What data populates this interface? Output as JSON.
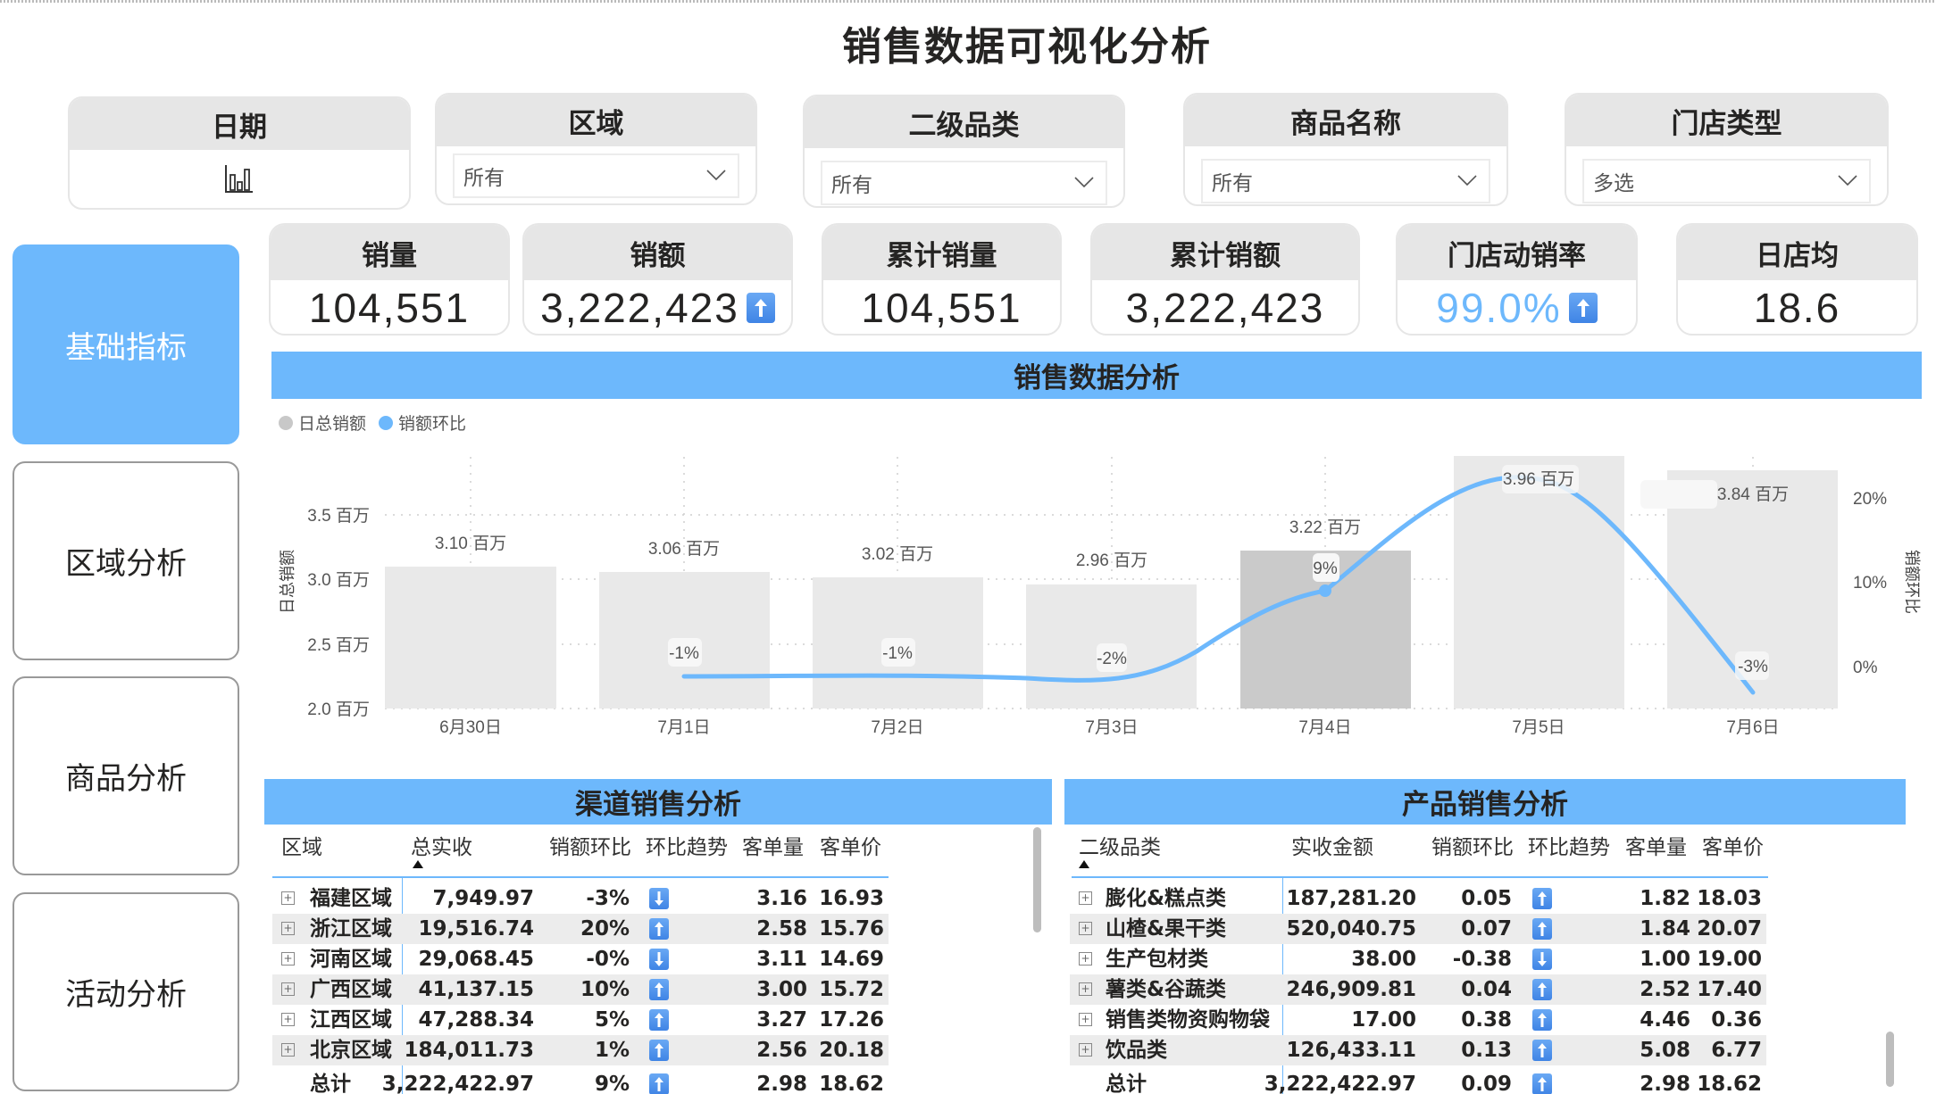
{
  "title": "销售数据可视化分析",
  "slicers": [
    {
      "label": "日期",
      "type": "date",
      "icon": "bar-chart-icon"
    },
    {
      "label": "区域",
      "value": "所有"
    },
    {
      "label": "二级品类",
      "value": "所有"
    },
    {
      "label": "商品名称",
      "value": "所有"
    },
    {
      "label": "门店类型",
      "value": "多选"
    }
  ],
  "nav": [
    {
      "label": "基础指标",
      "active": true
    },
    {
      "label": "区域分析",
      "active": false
    },
    {
      "label": "商品分析",
      "active": false
    },
    {
      "label": "活动分析",
      "active": false
    }
  ],
  "kpis": [
    {
      "label": "销量",
      "value": "104,551"
    },
    {
      "label": "销额",
      "value": "3,222,423",
      "trend": "up"
    },
    {
      "label": "累计销量",
      "value": "104,551"
    },
    {
      "label": "累计销额",
      "value": "3,222,423"
    },
    {
      "label": "门店动销率",
      "value": "99.0%",
      "trend": "up",
      "color": "#6db8fc"
    },
    {
      "label": "日店均",
      "value": "18.6"
    }
  ],
  "chart": {
    "header": "销售数据分析",
    "legend": [
      {
        "label": "日总销额",
        "color": "#c8c8c8"
      },
      {
        "label": "销额环比",
        "color": "#6db8fc"
      }
    ]
  },
  "chart_data": {
    "type": "bar",
    "title": "销售数据分析",
    "categories": [
      "6月30日",
      "7月1日",
      "7月2日",
      "7月3日",
      "7月4日",
      "7月5日",
      "7月6日"
    ],
    "series": [
      {
        "name": "日总销额",
        "type": "bar",
        "axis": "left",
        "values": [
          3.1,
          3.06,
          3.02,
          2.96,
          3.22,
          3.96,
          3.84
        ],
        "labels": [
          "3.10 百万",
          "3.06 百万",
          "3.02 百万",
          "2.96 百万",
          "3.22 百万",
          "3.96 百万",
          "3.84 百万"
        ],
        "unit": "百万"
      },
      {
        "name": "销额环比",
        "type": "line",
        "axis": "right",
        "values": [
          null,
          -1,
          -1,
          -2,
          9,
          23,
          -3
        ],
        "labels": [
          "",
          "-1%",
          "-1%",
          "-2%",
          "9%",
          "",
          "-3%"
        ],
        "unit": "%"
      }
    ],
    "ylabel": "日总销额",
    "y2label": "销额环比",
    "yticks": [
      "2.0 百万",
      "2.5 百万",
      "3.0 百万",
      "3.5 百万"
    ],
    "y2ticks": [
      "0%",
      "10%",
      "20%"
    ],
    "ylim": [
      2.0,
      4.0
    ],
    "y2lim": [
      -5,
      25
    ],
    "highlighted": "7月4日",
    "legend_position": "top-left",
    "grid": true
  },
  "channel_table": {
    "title": "渠道销售分析",
    "columns": [
      "区域",
      "总实收",
      "销额环比",
      "环比趋势",
      "客单量",
      "客单价"
    ],
    "sort_column": "总实收",
    "rows": [
      {
        "name": "福建区域",
        "total": "7,949.97",
        "mom": "-3%",
        "trend": "down",
        "qty": "3.16",
        "price": "16.93"
      },
      {
        "name": "浙江区域",
        "total": "19,516.74",
        "mom": "20%",
        "trend": "up",
        "qty": "2.58",
        "price": "15.76"
      },
      {
        "name": "河南区域",
        "total": "29,068.45",
        "mom": "-0%",
        "trend": "down",
        "qty": "3.11",
        "price": "14.69"
      },
      {
        "name": "广西区域",
        "total": "41,137.15",
        "mom": "10%",
        "trend": "up",
        "qty": "3.00",
        "price": "15.72"
      },
      {
        "name": "江西区域",
        "total": "47,288.34",
        "mom": "5%",
        "trend": "up",
        "qty": "3.27",
        "price": "17.26"
      },
      {
        "name": "北京区域",
        "total": "184,011.73",
        "mom": "1%",
        "trend": "up",
        "qty": "2.56",
        "price": "20.18"
      }
    ],
    "total": {
      "name": "总计",
      "total": "3,222,422.97",
      "mom": "9%",
      "trend": "up",
      "qty": "2.98",
      "price": "18.62"
    }
  },
  "product_table": {
    "title": "产品销售分析",
    "columns": [
      "二级品类",
      "实收金额",
      "销额环比",
      "环比趋势",
      "客单量",
      "客单价"
    ],
    "sort_column": "二级品类",
    "rows": [
      {
        "name": "膨化&糕点类",
        "total": "187,281.20",
        "mom": "0.05",
        "trend": "up",
        "qty": "1.82",
        "price": "18.03"
      },
      {
        "name": "山楂&果干类",
        "total": "520,040.75",
        "mom": "0.07",
        "trend": "up",
        "qty": "1.84",
        "price": "20.07"
      },
      {
        "name": "生产包材类",
        "total": "38.00",
        "mom": "-0.38",
        "trend": "down",
        "qty": "1.00",
        "price": "19.00"
      },
      {
        "name": "薯类&谷蔬类",
        "total": "246,909.81",
        "mom": "0.04",
        "trend": "up",
        "qty": "2.52",
        "price": "17.40"
      },
      {
        "name": "销售类物资购物袋",
        "total": "17.00",
        "mom": "0.38",
        "trend": "up",
        "qty": "4.46",
        "price": "0.36"
      },
      {
        "name": "饮品类",
        "total": "126,433.11",
        "mom": "0.13",
        "trend": "up",
        "qty": "5.08",
        "price": "6.77"
      }
    ],
    "total": {
      "name": "总计",
      "total": "3,222,422.97",
      "mom": "0.09",
      "trend": "up",
      "qty": "2.98",
      "price": "18.62"
    }
  },
  "colors": {
    "accent": "#6db8fc",
    "bar": "#e9e9e9",
    "bar_highlight": "#cacaca",
    "header_gray": "#e6e6e6"
  }
}
